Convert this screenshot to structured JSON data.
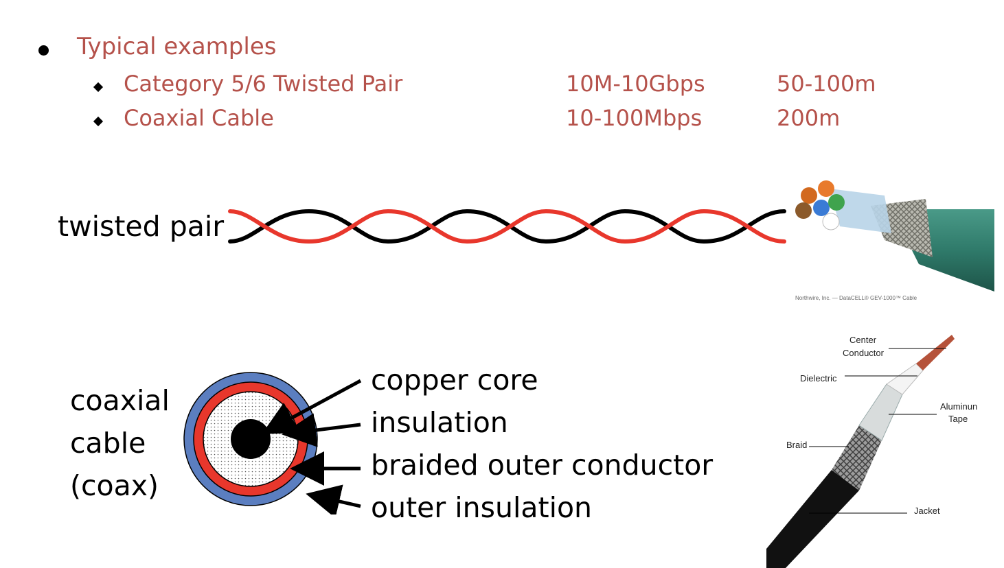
{
  "list": {
    "heading": "Typical examples",
    "rows": [
      {
        "name": "Category 5/6 Twisted Pair",
        "rate": "10M-10Gbps",
        "distance": "50-100m"
      },
      {
        "name": "Coaxial Cable",
        "rate": "10-100Mbps",
        "distance": "200m"
      }
    ]
  },
  "twisted": {
    "label": "twisted pair",
    "photo_caption": "Northwire, Inc. — DataCELL® GEV-1000™ Cable"
  },
  "coax": {
    "label_lines": [
      "coaxial",
      "cable",
      "(coax)"
    ],
    "layers": [
      "copper core",
      "insulation",
      "braided outer conductor",
      "outer insulation"
    ],
    "photo_labels": {
      "center_conductor": [
        "Center",
        "Conductor"
      ],
      "dielectric": "Dielectric",
      "aluminum_tape": [
        "Aluminun",
        "Tape"
      ],
      "braid": "Braid",
      "jacket": "Jacket"
    }
  },
  "colors": {
    "accent_text": "#b5524b",
    "wire_red": "#e8372c",
    "wire_black": "#000000",
    "coax_blue": "#5b7ec0",
    "cable_green": "#2f7a6a"
  }
}
